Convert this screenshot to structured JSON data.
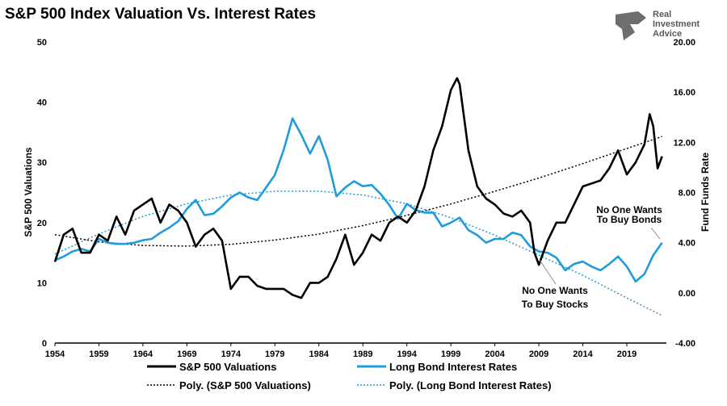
{
  "chart_data": {
    "type": "line",
    "title": "S&P 500 Index Valuation Vs. Interest Rates",
    "ylabel_left": "S&P 500 Valuations",
    "ylabel_right": "Fund Funds Rate",
    "xlim": [
      1954,
      2023.5
    ],
    "ylim_left": [
      0,
      50
    ],
    "ylim_right": [
      -4,
      20
    ],
    "x_ticks": [
      "1954",
      "1959",
      "1964",
      "1969",
      "1974",
      "1979",
      "1984",
      "1989",
      "1994",
      "1999",
      "2004",
      "2009",
      "2014",
      "2019"
    ],
    "y_left_ticks": [
      "0",
      "10",
      "20",
      "30",
      "40",
      "50"
    ],
    "y_right_ticks": [
      "-4.00",
      "0.00",
      "4.00",
      "8.00",
      "12.00",
      "16.00",
      "20.00"
    ],
    "grid": false,
    "legend_position": "bottom",
    "series": [
      {
        "name": "S&P 500 Valuations",
        "axis": "left",
        "color": "#000000",
        "x": [
          1954,
          1955,
          1956,
          1957,
          1958,
          1959,
          1960,
          1961,
          1962,
          1963,
          1964,
          1965,
          1966,
          1967,
          1968,
          1969,
          1970,
          1971,
          1972,
          1973,
          1974,
          1975,
          1976,
          1977,
          1978,
          1979,
          1980,
          1981,
          1982,
          1983,
          1984,
          1985,
          1986,
          1987,
          1988,
          1989,
          1990,
          1991,
          1992,
          1993,
          1994,
          1995,
          1996,
          1997,
          1998,
          1999,
          1999.7,
          2000,
          2001,
          2002,
          2003,
          2004,
          2005,
          2006,
          2007,
          2008,
          2008.5,
          2009,
          2010,
          2011,
          2012,
          2013,
          2014,
          2015,
          2016,
          2017,
          2018,
          2019,
          2020,
          2021,
          2021.6,
          2022,
          2022.5,
          2023
        ],
        "values": [
          13.5,
          18,
          19,
          15,
          15,
          18,
          17,
          21,
          18,
          22,
          23,
          24,
          20,
          23,
          22,
          20,
          16,
          18,
          19,
          17,
          9,
          11,
          11,
          9.5,
          9,
          9,
          9,
          8,
          7.5,
          10,
          10,
          11,
          14,
          18,
          13,
          15,
          18,
          17,
          20,
          21,
          20,
          22,
          26,
          32,
          36,
          42,
          44,
          43,
          32,
          26,
          24,
          23,
          21.5,
          21,
          22,
          20,
          15,
          13,
          17,
          20,
          20,
          23,
          26,
          26.5,
          27,
          29,
          32,
          28,
          30,
          33,
          38,
          36,
          29,
          31
        ]
      },
      {
        "name": "Long Bond Interest Rates",
        "axis": "right",
        "color": "#1e9cdc",
        "x": [
          1954,
          1955,
          1956,
          1957,
          1958,
          1959,
          1960,
          1961,
          1962,
          1963,
          1964,
          1965,
          1966,
          1967,
          1968,
          1969,
          1970,
          1971,
          1972,
          1973,
          1974,
          1975,
          1976,
          1977,
          1978,
          1979,
          1980,
          1981,
          1982,
          1983,
          1984,
          1985,
          1986,
          1987,
          1988,
          1989,
          1990,
          1991,
          1992,
          1993,
          1994,
          1995,
          1996,
          1997,
          1998,
          1999,
          2000,
          2001,
          2002,
          2003,
          2004,
          2005,
          2006,
          2007,
          2008,
          2009,
          2010,
          2011,
          2012,
          2013,
          2014,
          2015,
          2016,
          2017,
          2018,
          2019,
          2020,
          2021,
          2022,
          2023
        ],
        "values": [
          2.6,
          2.9,
          3.3,
          3.5,
          3.3,
          4.3,
          4.0,
          3.9,
          3.9,
          4.0,
          4.2,
          4.3,
          4.8,
          5.2,
          5.7,
          6.7,
          7.4,
          6.2,
          6.3,
          6.9,
          7.6,
          8.0,
          7.6,
          7.4,
          8.4,
          9.4,
          11.4,
          13.9,
          12.6,
          11.1,
          12.5,
          10.6,
          7.7,
          8.4,
          8.9,
          8.5,
          8.6,
          7.9,
          7.0,
          5.9,
          7.1,
          6.6,
          6.4,
          6.4,
          5.3,
          5.6,
          6.0,
          5.0,
          4.6,
          4.0,
          4.3,
          4.3,
          4.8,
          4.6,
          3.7,
          3.3,
          3.2,
          2.8,
          1.8,
          2.3,
          2.5,
          2.1,
          1.8,
          2.3,
          2.9,
          2.1,
          0.9,
          1.5,
          3.0,
          4.0
        ]
      },
      {
        "name": "Poly. (S&P 500 Valuations)",
        "axis": "left",
        "color": "#000000",
        "dashed": true,
        "x": [
          1954,
          1959,
          1964,
          1969,
          1974,
          1979,
          1984,
          1989,
          1994,
          1999,
          2004,
          2009,
          2014,
          2019,
          2023
        ],
        "values": [
          18,
          16.8,
          16.2,
          16.1,
          16.4,
          17.1,
          18.1,
          19.5,
          21.2,
          23.1,
          25.2,
          27.4,
          29.8,
          32.3,
          34.3
        ]
      },
      {
        "name": "Poly. (Long Bond Interest Rates)",
        "axis": "right",
        "color": "#1e9cdc",
        "dashed": true,
        "x": [
          1954,
          1959,
          1964,
          1969,
          1974,
          1979,
          1984,
          1989,
          1994,
          1999,
          2004,
          2009,
          2014,
          2019,
          2023
        ],
        "values": [
          3.1,
          4.7,
          6.1,
          7.1,
          7.8,
          8.1,
          8.1,
          7.8,
          7.1,
          6.0,
          4.6,
          3.0,
          1.4,
          -0.4,
          -1.8
        ]
      }
    ],
    "annotations": [
      {
        "text": [
          "No One Wants",
          "To Buy Bonds"
        ],
        "color": "#e8202a"
      },
      {
        "text": [
          "No One Wants",
          "To Buy Stocks"
        ],
        "color": "#e8202a"
      }
    ]
  },
  "brand": {
    "line1": "Real",
    "line2": "Investment",
    "line3": "Advice"
  }
}
